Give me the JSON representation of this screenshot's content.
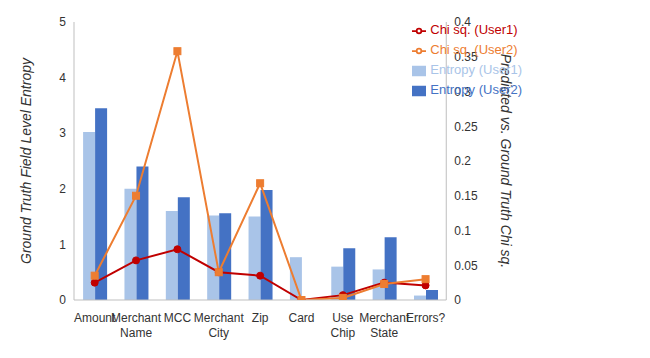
{
  "chart_data": {
    "type": "bar",
    "categories": [
      "Amount",
      "Merchant Name",
      "MCC",
      "Merchant City",
      "Zip",
      "Card",
      "Use Chip",
      "Merchant State",
      "Errors?"
    ],
    "ylabel": "Ground Truth Field Level Entropy",
    "y2label": "Predicted vs. Ground Truth Chi sq.",
    "ylim": [
      0,
      5
    ],
    "yticks": [
      0,
      1,
      2,
      3,
      4,
      5
    ],
    "y2lim": [
      0,
      0.4
    ],
    "y2ticks": [
      0,
      0.05,
      0.1,
      0.15,
      0.2,
      0.25,
      0.3,
      0.35,
      0.4
    ],
    "grid": false,
    "legend": "top-right",
    "series": [
      {
        "name": "Entropy (User1)",
        "type": "bar",
        "color": "#a9c4e8",
        "values": [
          3.02,
          2.0,
          1.6,
          1.52,
          1.5,
          0.77,
          0.6,
          0.55,
          0.08
        ]
      },
      {
        "name": "Entropy (User2)",
        "type": "bar",
        "color": "#4472c4",
        "values": [
          3.45,
          2.4,
          1.85,
          1.56,
          1.98,
          0,
          0.93,
          1.13,
          0.18
        ]
      },
      {
        "name": "Chi sq. (User1)",
        "type": "line",
        "axis": "y2",
        "color": "#c00000",
        "marker": "circle",
        "values": [
          0.025,
          0.057,
          0.073,
          0.04,
          0.035,
          0,
          0.007,
          0.025,
          0.021
        ]
      },
      {
        "name": "Chi sq. (User2)",
        "type": "line",
        "axis": "y2",
        "color": "#ed7d31",
        "marker": "square",
        "values": [
          0.035,
          0.15,
          0.358,
          0.04,
          0.168,
          0,
          0.003,
          0.023,
          0.03
        ]
      }
    ]
  }
}
